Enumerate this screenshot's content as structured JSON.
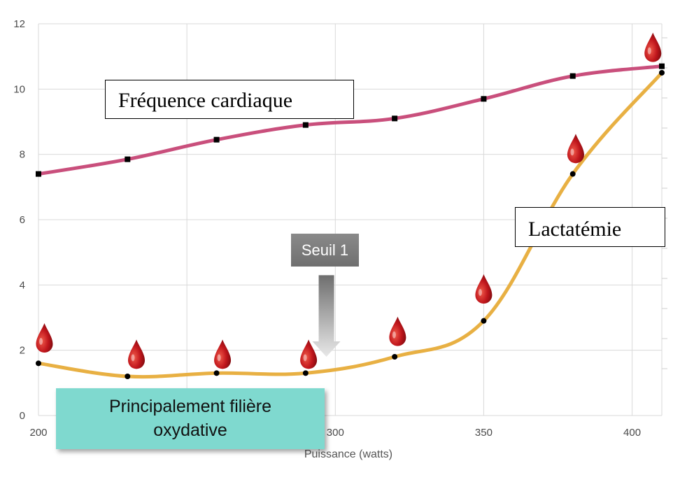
{
  "chart_data": {
    "type": "line",
    "title": "",
    "xlabel": "Puissance (watts)",
    "ylabel": "",
    "xlim": [
      200,
      410
    ],
    "ylim": [
      0,
      12
    ],
    "xticks": [
      200,
      250,
      300,
      350,
      400
    ],
    "yticks": [
      0,
      2,
      4,
      6,
      8,
      10,
      12
    ],
    "xtick_labels": [
      "200",
      "",
      "300",
      "350",
      "400"
    ],
    "grid": true,
    "series": [
      {
        "name": "Fréquence cardiaque",
        "color": "#c94f7c",
        "marker": "square",
        "x": [
          200,
          230,
          260,
          290,
          320,
          350,
          380,
          410
        ],
        "y": [
          7.4,
          7.85,
          8.45,
          8.9,
          9.1,
          9.7,
          10.4,
          10.7
        ]
      },
      {
        "name": "Lactatémie",
        "color": "#e8b043",
        "marker": "circle",
        "x": [
          200,
          230,
          260,
          290,
          320,
          350,
          380,
          410
        ],
        "y": [
          1.6,
          1.2,
          1.3,
          1.3,
          1.8,
          2.9,
          7.4,
          10.5
        ]
      }
    ],
    "blood_drops": [
      {
        "x": 202,
        "y": 2.4
      },
      {
        "x": 233,
        "y": 1.9
      },
      {
        "x": 262,
        "y": 1.9
      },
      {
        "x": 291,
        "y": 1.9
      },
      {
        "x": 321,
        "y": 2.6
      },
      {
        "x": 350,
        "y": 3.9
      },
      {
        "x": 381,
        "y": 8.2
      },
      {
        "x": 407,
        "y": 11.3
      }
    ],
    "threshold_arrow": {
      "x": 297,
      "y_top": 4.3,
      "y_bottom": 1.8
    }
  },
  "annotations": {
    "frequence_cardiaque": "Fréquence cardiaque",
    "lactatemie": "Lactatémie",
    "seuil": "Seuil 1",
    "filiere_line1": "Principalement filière",
    "filiere_line2": "oxydative"
  },
  "colors": {
    "grid": "#d9d9d9",
    "fc_line": "#c94f7c",
    "lac_line": "#e8b043",
    "drop": "#c0161c",
    "filiere_bg": "#7fd9cf"
  }
}
